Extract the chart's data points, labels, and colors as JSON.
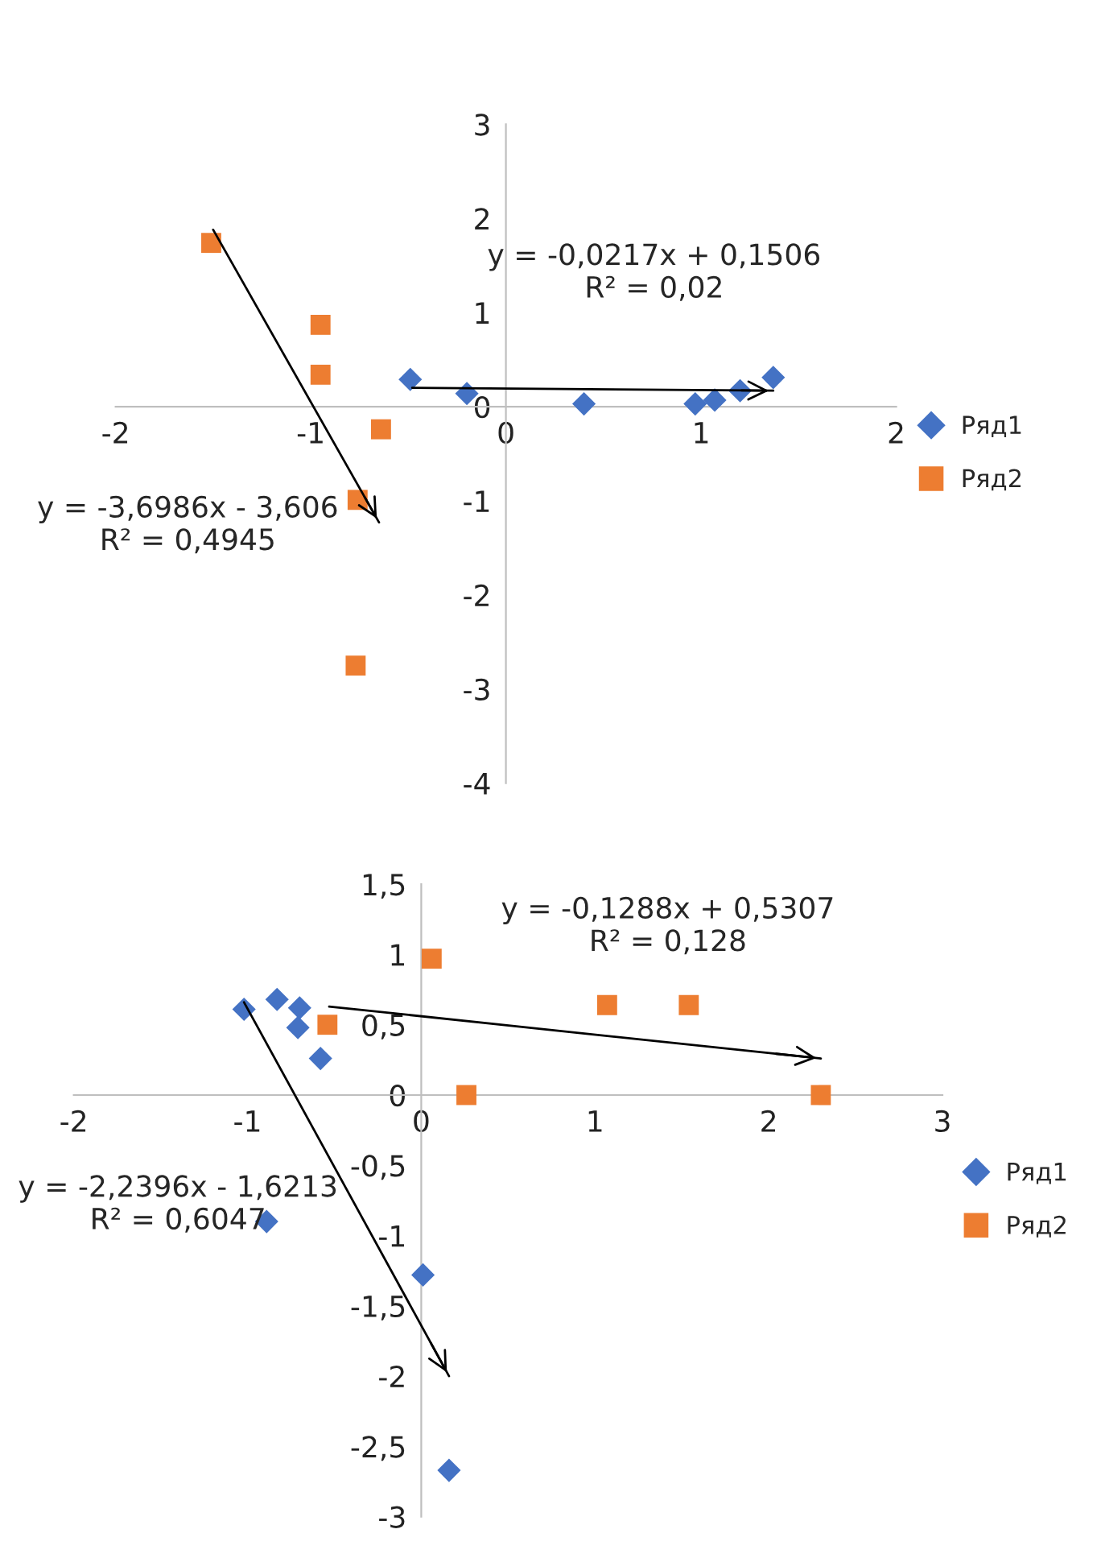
{
  "chart_data": [
    {
      "type": "scatter",
      "xlim": [
        -2,
        2
      ],
      "ylim": [
        -4,
        3
      ],
      "xticks": [
        -2,
        -1,
        0,
        1,
        2
      ],
      "yticks": [
        -4,
        -3,
        -2,
        -1,
        0,
        1,
        2,
        3
      ],
      "legend": "right",
      "grid": false,
      "series": [
        {
          "name": "Ряд1",
          "color": "#4472c4",
          "marker": "diamond",
          "x": [
            -0.49,
            -0.2,
            0.4,
            0.97,
            1.07,
            1.2,
            1.37
          ],
          "values": [
            0.29,
            0.14,
            0.03,
            0.03,
            0.07,
            0.17,
            0.31
          ]
        },
        {
          "name": "Ряд2",
          "color": "#ed7d31",
          "marker": "square",
          "x": [
            -1.51,
            -0.95,
            -0.95,
            -0.64,
            -0.76,
            -0.77
          ],
          "values": [
            1.74,
            0.87,
            0.34,
            -0.24,
            -0.99,
            -2.75
          ]
        },
        {
          "type": "line",
          "color": "#000000",
          "x": [
            -0.48,
            1.37
          ],
          "values": [
            0.2,
            0.17
          ]
        },
        {
          "type": "line",
          "color": "#000000",
          "x": [
            -1.5,
            -0.65
          ],
          "values": [
            1.88,
            -1.23
          ]
        }
      ],
      "annotations": [
        "y = -0,0217x + 0,1506\nR² = 0,02",
        "y = -3,6986x - 3,606\nR² = 0,4945"
      ]
    },
    {
      "type": "scatter",
      "xlim": [
        -2,
        3
      ],
      "ylim": [
        -3,
        1.5
      ],
      "xticks": [
        -2,
        -1,
        0,
        1,
        2,
        3
      ],
      "yticks": [
        -3,
        {
          "value": -2.5,
          "label": "-2,5"
        },
        -2,
        {
          "value": -1.5,
          "label": "-1,5"
        },
        -1,
        {
          "value": -0.5,
          "label": "-0,5"
        },
        0,
        {
          "value": 0.5,
          "label": "0,5"
        },
        1,
        {
          "value": 1.5,
          "label": "1,5"
        }
      ],
      "legend": "right",
      "grid": false,
      "series": [
        {
          "name": "Ряд1",
          "color": "#4472c4",
          "marker": "diamond",
          "x": [
            -1.02,
            -0.83,
            -0.7,
            -0.71,
            -0.58,
            -0.89,
            0.01,
            0.16
          ],
          "values": [
            0.61,
            0.68,
            0.62,
            0.48,
            0.26,
            -0.9,
            -1.28,
            -2.67
          ]
        },
        {
          "name": "Ряд2",
          "color": "#ed7d31",
          "marker": "square",
          "x": [
            0.06,
            -0.54,
            1.07,
            1.54,
            0.26,
            2.3
          ],
          "values": [
            0.97,
            0.5,
            0.64,
            0.64,
            0,
            0
          ]
        },
        {
          "type": "line",
          "color": "#000000",
          "x": [
            -0.53,
            2.3
          ],
          "values": [
            0.63,
            0.26
          ]
        },
        {
          "type": "line",
          "color": "#000000",
          "x": [
            -1.02,
            0.16
          ],
          "values": [
            0.66,
            -2.0
          ]
        }
      ],
      "annotations": [
        "y = -0,1288x + 0,5307\nR² = 0,128",
        "y = -2,2396x - 1,6213\nR² = 0,6047"
      ]
    }
  ]
}
